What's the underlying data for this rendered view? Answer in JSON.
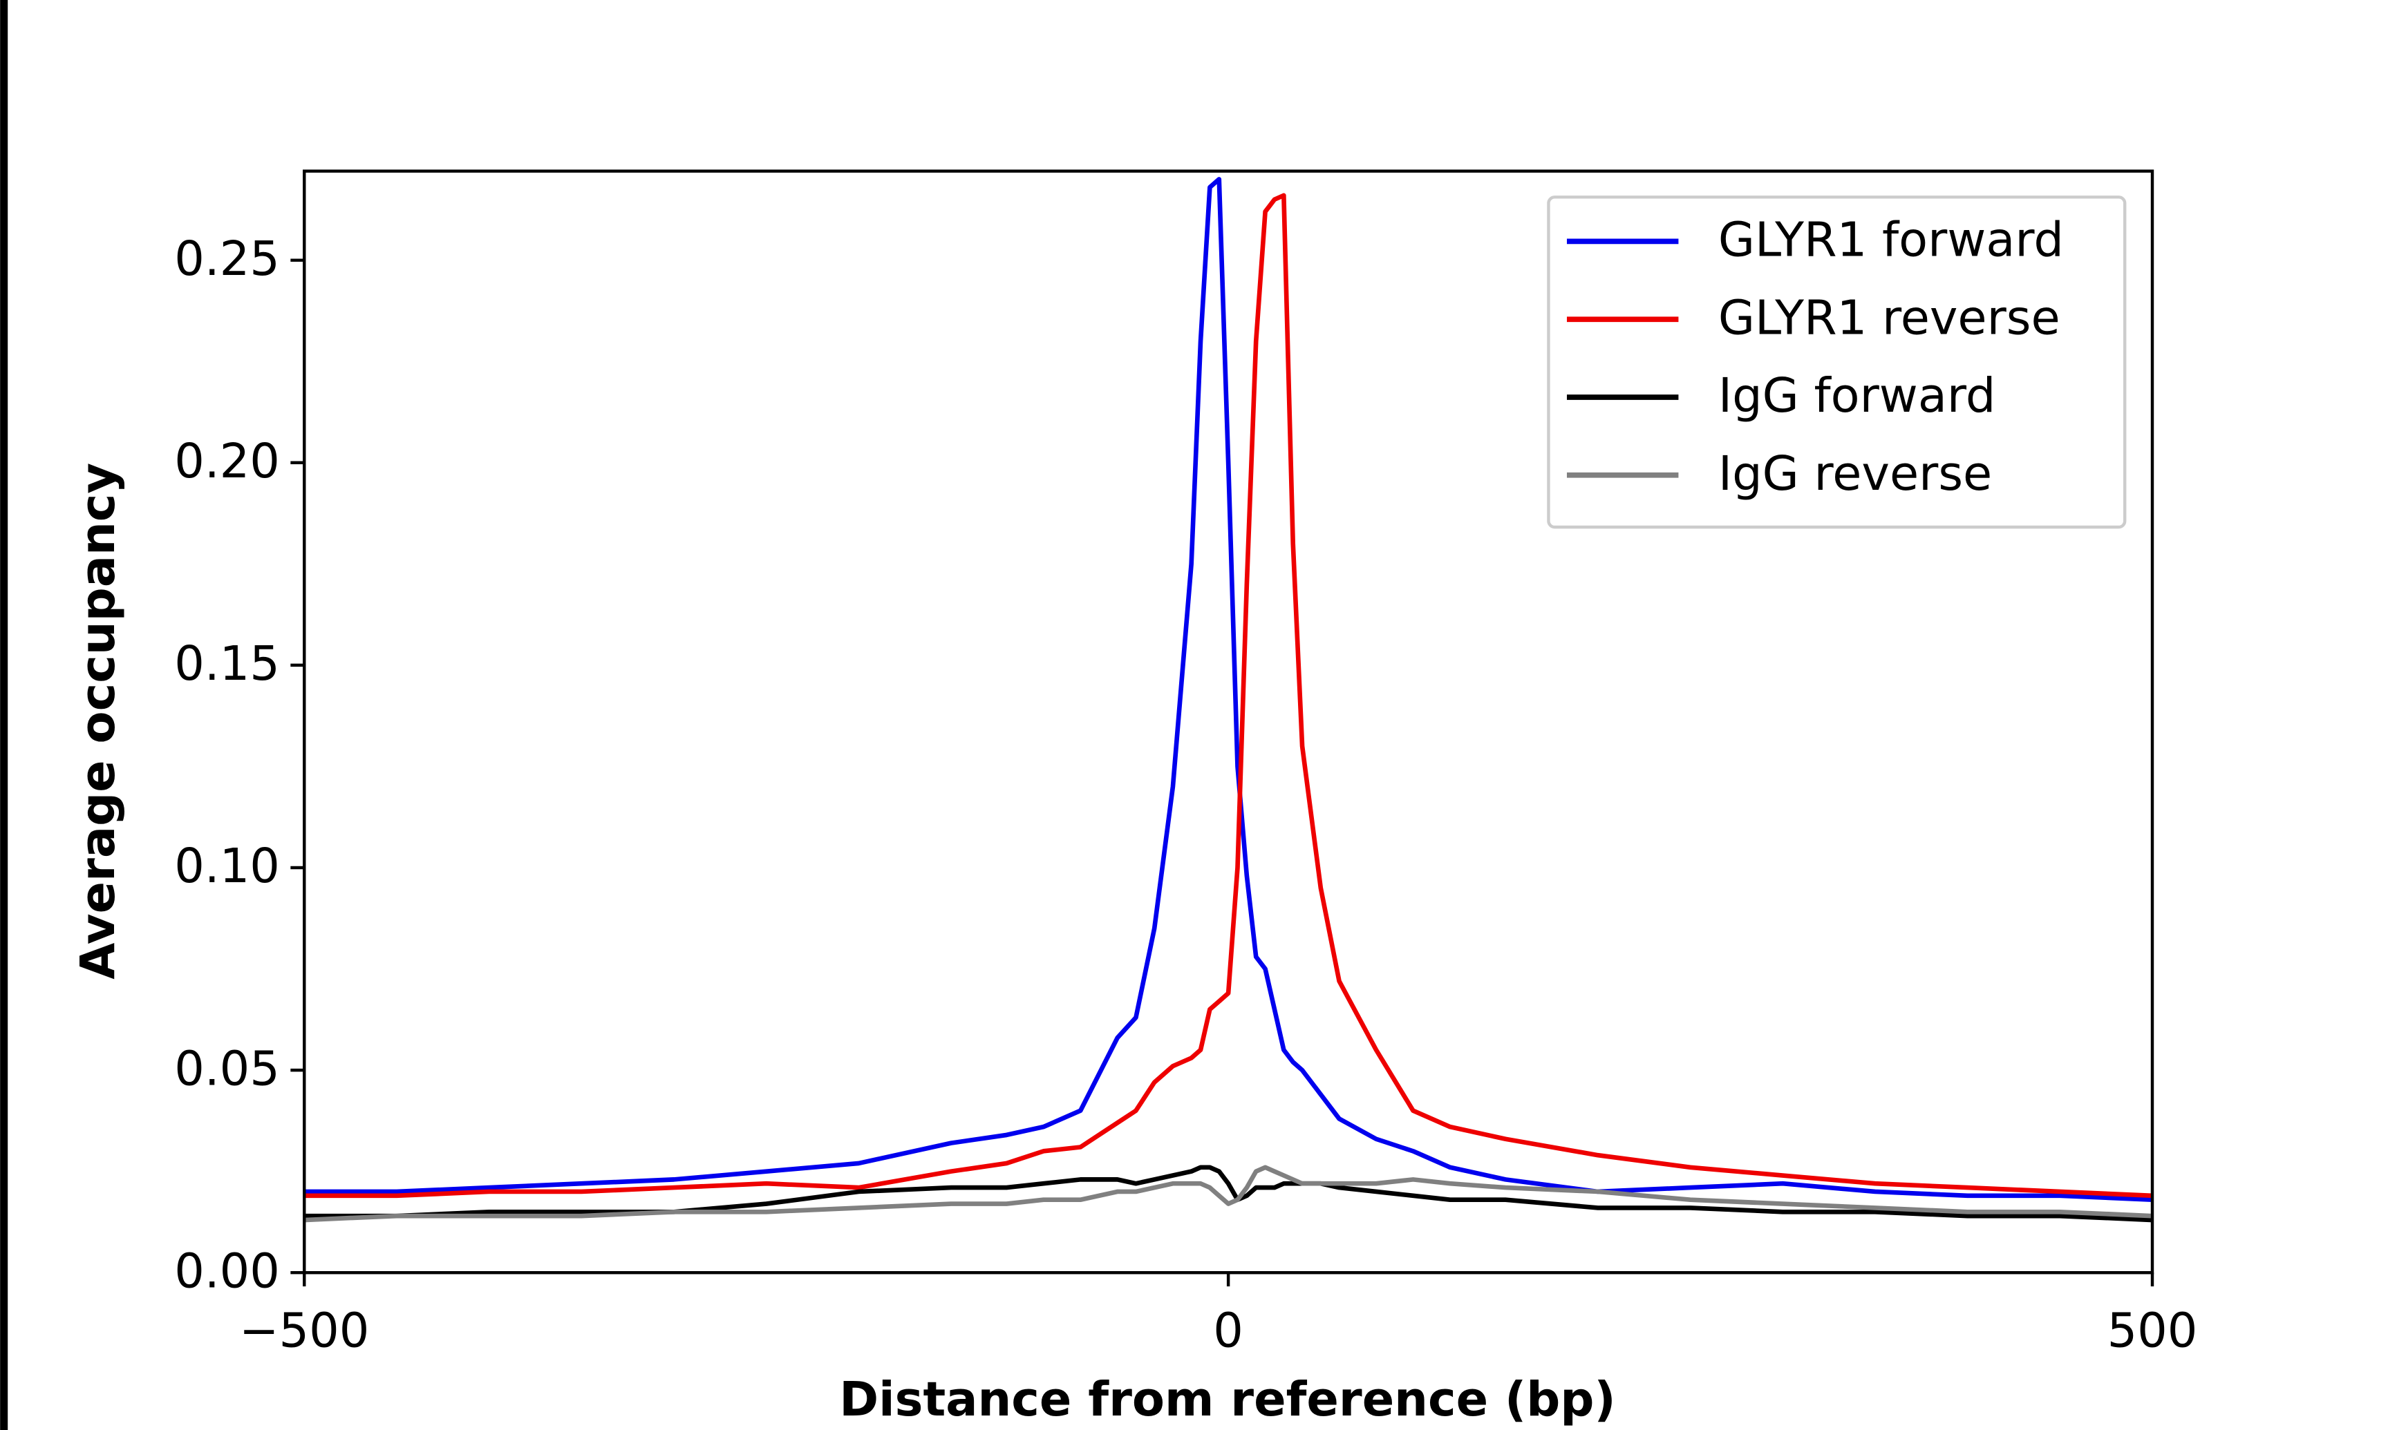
{
  "chart_data": {
    "type": "line",
    "xlabel": "Distance from reference (bp)",
    "ylabel": "Average occupancy",
    "xlim": [
      -500,
      500
    ],
    "ylim": [
      0,
      0.272
    ],
    "xticks": [
      {
        "value": -500,
        "label": "−500"
      },
      0,
      500
    ],
    "yticks": [
      {
        "value": 0,
        "label": "0.00"
      },
      {
        "value": 0.05,
        "label": "0.05"
      },
      {
        "value": 0.1,
        "label": "0.10"
      },
      {
        "value": 0.15,
        "label": "0.15"
      },
      {
        "value": 0.2,
        "label": "0.20"
      },
      {
        "value": 0.25,
        "label": "0.25"
      }
    ],
    "grid": false,
    "legend": "upper right",
    "x": [
      -500,
      -450,
      -400,
      -350,
      -300,
      -250,
      -200,
      -150,
      -120,
      -100,
      -80,
      -60,
      -50,
      -40,
      -30,
      -20,
      -15,
      -10,
      -5,
      0,
      5,
      10,
      15,
      20,
      25,
      30,
      35,
      40,
      50,
      60,
      80,
      100,
      120,
      150,
      200,
      250,
      300,
      350,
      400,
      450,
      500
    ],
    "series": [
      {
        "name": "GLYR1 forward",
        "color": "#0000ee",
        "values": [
          0.02,
          0.02,
          0.021,
          0.022,
          0.023,
          0.025,
          0.027,
          0.032,
          0.034,
          0.036,
          0.04,
          0.058,
          0.063,
          0.085,
          0.12,
          0.175,
          0.23,
          0.268,
          0.27,
          0.2,
          0.125,
          0.098,
          0.078,
          0.075,
          0.065,
          0.055,
          0.052,
          0.05,
          0.044,
          0.038,
          0.033,
          0.03,
          0.026,
          0.023,
          0.02,
          0.021,
          0.022,
          0.02,
          0.019,
          0.019,
          0.018
        ]
      },
      {
        "name": "GLYR1 reverse",
        "color": "#ee0000",
        "values": [
          0.019,
          0.019,
          0.02,
          0.02,
          0.021,
          0.022,
          0.021,
          0.025,
          0.027,
          0.03,
          0.031,
          0.037,
          0.04,
          0.047,
          0.051,
          0.053,
          0.055,
          0.065,
          0.067,
          0.069,
          0.1,
          0.17,
          0.23,
          0.262,
          0.265,
          0.266,
          0.18,
          0.13,
          0.095,
          0.072,
          0.055,
          0.04,
          0.036,
          0.033,
          0.029,
          0.026,
          0.024,
          0.022,
          0.021,
          0.02,
          0.019
        ]
      },
      {
        "name": "IgG forward",
        "color": "#000000",
        "values": [
          0.014,
          0.014,
          0.015,
          0.015,
          0.015,
          0.017,
          0.02,
          0.021,
          0.021,
          0.022,
          0.023,
          0.023,
          0.022,
          0.023,
          0.024,
          0.025,
          0.026,
          0.026,
          0.025,
          0.022,
          0.018,
          0.019,
          0.021,
          0.021,
          0.021,
          0.022,
          0.022,
          0.022,
          0.022,
          0.021,
          0.02,
          0.019,
          0.018,
          0.018,
          0.016,
          0.016,
          0.015,
          0.015,
          0.014,
          0.014,
          0.013
        ]
      },
      {
        "name": "IgG reverse",
        "color": "#808080",
        "values": [
          0.013,
          0.014,
          0.014,
          0.014,
          0.015,
          0.015,
          0.016,
          0.017,
          0.017,
          0.018,
          0.018,
          0.02,
          0.02,
          0.021,
          0.022,
          0.022,
          0.022,
          0.021,
          0.019,
          0.017,
          0.018,
          0.021,
          0.025,
          0.026,
          0.025,
          0.024,
          0.023,
          0.022,
          0.022,
          0.022,
          0.022,
          0.023,
          0.022,
          0.021,
          0.02,
          0.018,
          0.017,
          0.016,
          0.015,
          0.015,
          0.014
        ]
      }
    ]
  }
}
